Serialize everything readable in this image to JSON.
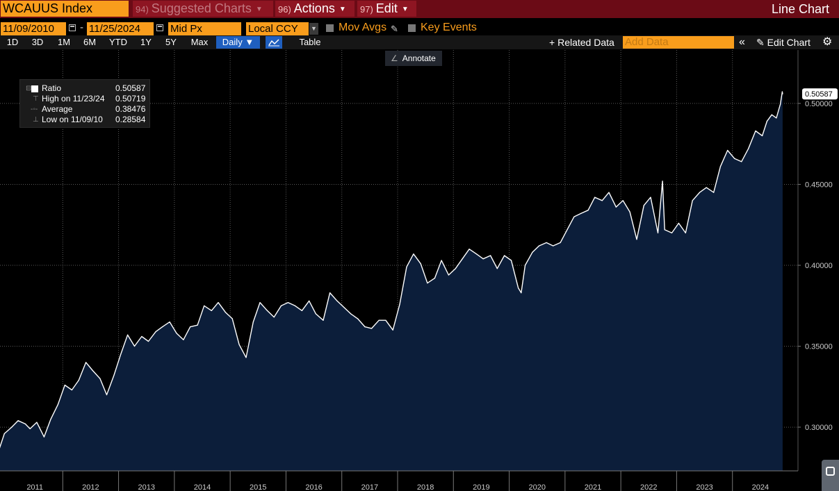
{
  "header": {
    "security": "WCAUUS Index",
    "menus": [
      {
        "num": "94)",
        "label": "Suggested Charts",
        "disabled": true
      },
      {
        "num": "96)",
        "label": "Actions",
        "disabled": false
      },
      {
        "num": "97)",
        "label": "Edit",
        "disabled": false
      }
    ],
    "chart_type_title": "Line Chart"
  },
  "controls": {
    "start_date": "11/09/2010",
    "end_date": "11/25/2024",
    "date_separator": "-",
    "price_field": "Mid Px",
    "currency": "Local CCY",
    "mov_avgs_label": "Mov Avgs",
    "key_events_label": "Key Events"
  },
  "toolbar": {
    "periods": [
      "1D",
      "3D",
      "1M",
      "6M",
      "YTD",
      "1Y",
      "5Y",
      "Max"
    ],
    "frequency": "Daily",
    "table_label": "Table",
    "related_data_label": "Related Data",
    "add_data_placeholder": "Add Data",
    "edit_chart_label": "Edit Chart",
    "annotate_label": "Annotate"
  },
  "legend": {
    "series_label": "Ratio",
    "series_value": "0.50587",
    "high_label": "High on 11/23/24",
    "high_value": "0.50719",
    "average_label": "Average",
    "average_value": "0.38476",
    "low_label": "Low on 11/09/10",
    "low_value": "0.28584"
  },
  "colors": {
    "accent_orange": "#f99d1c",
    "title_bar": "#6b0b16",
    "area_fill": "#0c1e3a",
    "line": "#ffffff"
  },
  "chart_data": {
    "type": "area",
    "title": "",
    "xlabel": "",
    "ylabel": "",
    "ylim": [
      0.273,
      0.533
    ],
    "y_ticks": [
      "0.30000",
      "0.35000",
      "0.40000",
      "0.45000",
      "0.50000"
    ],
    "x_tick_labels": [
      "2011",
      "2012",
      "2013",
      "2014",
      "2015",
      "2016",
      "2017",
      "2018",
      "2019",
      "2020",
      "2021",
      "2022",
      "2023",
      "2024"
    ],
    "last_value_label": "0.50587",
    "grid": true,
    "series": [
      {
        "name": "Ratio",
        "x": [
          "2010-11-09",
          "2010-12-15",
          "2011-02-01",
          "2011-03-15",
          "2011-05-01",
          "2011-06-01",
          "2011-07-15",
          "2011-09-01",
          "2011-10-15",
          "2011-12-01",
          "2012-01-15",
          "2012-03-01",
          "2012-04-15",
          "2012-06-01",
          "2012-07-15",
          "2012-09-01",
          "2012-10-15",
          "2012-12-01",
          "2013-01-15",
          "2013-03-01",
          "2013-04-15",
          "2013-06-01",
          "2013-07-15",
          "2013-09-01",
          "2013-10-15",
          "2013-12-01",
          "2014-01-15",
          "2014-03-01",
          "2014-04-15",
          "2014-06-01",
          "2014-07-15",
          "2014-09-01",
          "2014-10-15",
          "2014-12-01",
          "2015-01-15",
          "2015-03-01",
          "2015-04-15",
          "2015-06-01",
          "2015-07-15",
          "2015-09-01",
          "2015-10-15",
          "2015-12-01",
          "2016-01-15",
          "2016-03-01",
          "2016-04-15",
          "2016-06-01",
          "2016-07-15",
          "2016-09-01",
          "2016-10-15",
          "2016-12-01",
          "2017-01-15",
          "2017-03-01",
          "2017-04-15",
          "2017-06-01",
          "2017-07-15",
          "2017-09-01",
          "2017-10-15",
          "2017-12-01",
          "2018-01-15",
          "2018-03-01",
          "2018-04-15",
          "2018-06-01",
          "2018-07-15",
          "2018-09-01",
          "2018-10-15",
          "2018-12-01",
          "2019-01-15",
          "2019-03-01",
          "2019-04-15",
          "2019-06-01",
          "2019-07-15",
          "2019-09-01",
          "2019-10-15",
          "2019-12-01",
          "2020-01-15",
          "2020-03-01",
          "2020-03-20",
          "2020-04-15",
          "2020-06-01",
          "2020-07-15",
          "2020-09-01",
          "2020-10-15",
          "2020-12-01",
          "2021-01-15",
          "2021-03-01",
          "2021-04-15",
          "2021-06-01",
          "2021-07-15",
          "2021-09-01",
          "2021-10-15",
          "2021-12-01",
          "2022-01-15",
          "2022-03-01",
          "2022-04-15",
          "2022-06-01",
          "2022-07-15",
          "2022-09-01",
          "2022-10-01",
          "2022-10-15",
          "2022-12-01",
          "2023-01-15",
          "2023-03-01",
          "2023-04-15",
          "2023-06-01",
          "2023-07-15",
          "2023-09-01",
          "2023-10-15",
          "2023-12-01",
          "2024-01-15",
          "2024-03-01",
          "2024-04-15",
          "2024-06-01",
          "2024-07-15",
          "2024-08-15",
          "2024-09-15",
          "2024-10-15",
          "2024-11-10",
          "2024-11-23",
          "2024-11-25"
        ],
        "values": [
          0.2858,
          0.296,
          0.3,
          0.304,
          0.302,
          0.299,
          0.303,
          0.294,
          0.305,
          0.314,
          0.326,
          0.323,
          0.329,
          0.34,
          0.335,
          0.33,
          0.32,
          0.332,
          0.345,
          0.357,
          0.35,
          0.356,
          0.353,
          0.359,
          0.362,
          0.365,
          0.358,
          0.354,
          0.362,
          0.363,
          0.375,
          0.372,
          0.377,
          0.371,
          0.367,
          0.351,
          0.343,
          0.365,
          0.377,
          0.372,
          0.368,
          0.375,
          0.377,
          0.375,
          0.372,
          0.378,
          0.37,
          0.366,
          0.383,
          0.378,
          0.374,
          0.37,
          0.367,
          0.362,
          0.361,
          0.366,
          0.366,
          0.36,
          0.376,
          0.399,
          0.407,
          0.401,
          0.389,
          0.392,
          0.403,
          0.394,
          0.398,
          0.404,
          0.41,
          0.407,
          0.404,
          0.406,
          0.398,
          0.406,
          0.403,
          0.386,
          0.383,
          0.4,
          0.408,
          0.412,
          0.414,
          0.412,
          0.414,
          0.422,
          0.43,
          0.432,
          0.434,
          0.442,
          0.44,
          0.445,
          0.436,
          0.44,
          0.433,
          0.416,
          0.437,
          0.442,
          0.42,
          0.452,
          0.422,
          0.42,
          0.426,
          0.42,
          0.44,
          0.445,
          0.448,
          0.445,
          0.461,
          0.471,
          0.466,
          0.464,
          0.472,
          0.483,
          0.48,
          0.489,
          0.493,
          0.491,
          0.4995,
          0.5072,
          0.50587
        ]
      }
    ]
  }
}
